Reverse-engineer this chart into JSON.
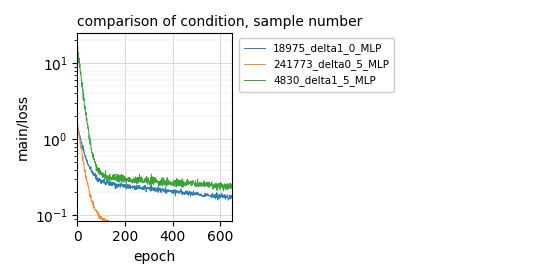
{
  "title": "comparison of condition, sample number",
  "xlabel": "epoch",
  "ylabel": "main/loss",
  "xlim": [
    0,
    650
  ],
  "ylim_log": [
    0.085,
    25
  ],
  "series": [
    {
      "label": "18975_delta1_0_MLP",
      "color": "#1f77b4",
      "start_val": 1.5,
      "end_val": 0.285,
      "fast_decay": 0.04,
      "slow_decay": 0.0008,
      "noise_scale": 0.04,
      "seed": 10
    },
    {
      "label": "241773_delta0_5_MLP",
      "color": "#ff7f0e",
      "start_val": 1.6,
      "end_val": 0.115,
      "fast_decay": 0.05,
      "slow_decay": 0.003,
      "noise_scale": 0.04,
      "seed": 20
    },
    {
      "label": "4830_delta1_5_MLP",
      "color": "#2ca02c",
      "start_val": 16.0,
      "end_val": 0.33,
      "fast_decay": 0.06,
      "slow_decay": 0.0005,
      "noise_scale": 0.06,
      "seed": 30
    }
  ],
  "figsize": [
    5.57,
    2.79
  ],
  "dpi": 100
}
